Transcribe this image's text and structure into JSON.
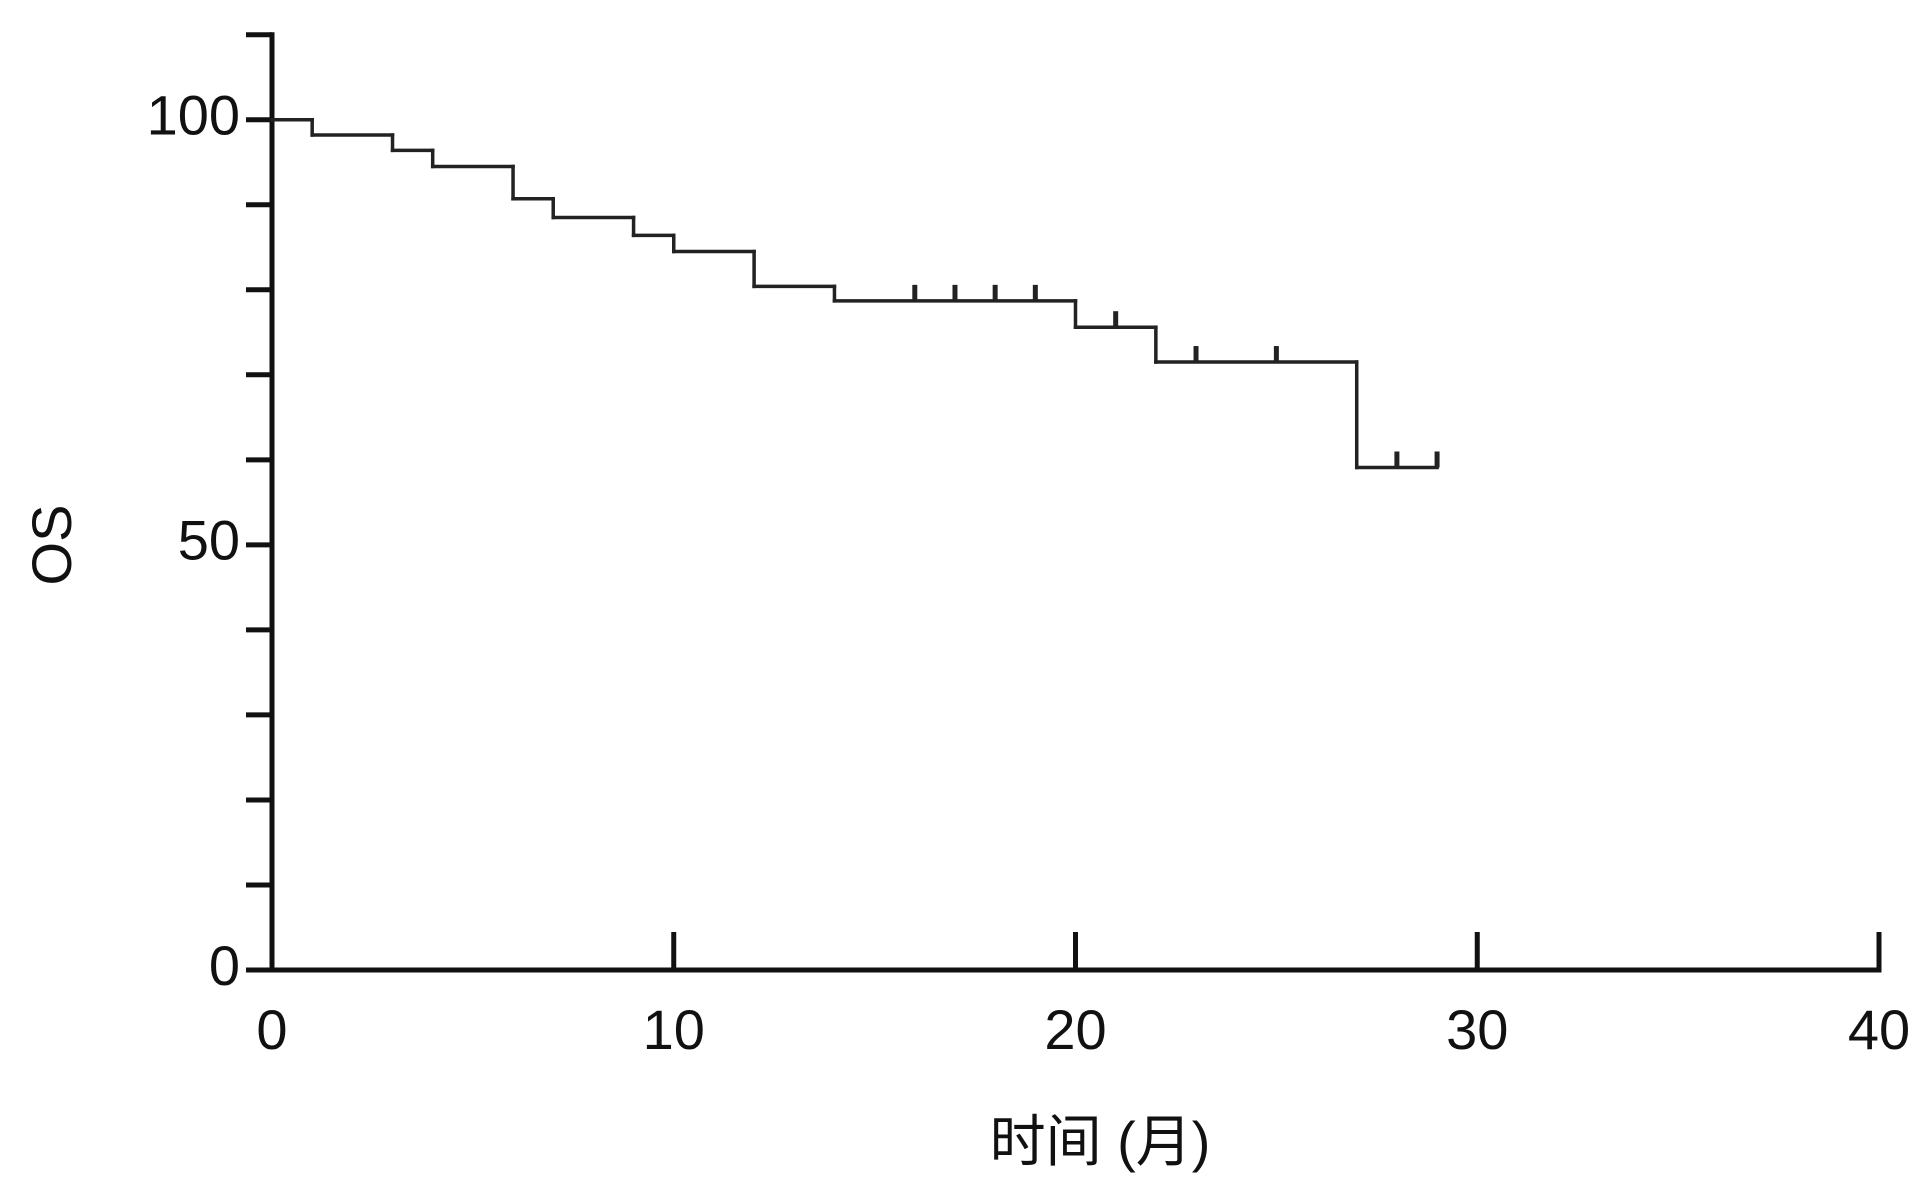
{
  "chart_data": {
    "type": "step",
    "x_label": "时间 (月)",
    "y_label": "OS",
    "x": [
      0,
      1,
      3,
      4,
      6,
      7,
      9,
      10,
      12,
      14,
      20,
      22,
      27
    ],
    "values": [
      100,
      98.2,
      96.4,
      94.5,
      90.7,
      88.5,
      86.4,
      84.5,
      80.4,
      78.7,
      75.6,
      71.5,
      59.1
    ],
    "censored_x": [
      16,
      17,
      18,
      19,
      21,
      23,
      25,
      28,
      29
    ],
    "color": "#222222",
    "xlim": [
      0,
      40
    ],
    "xticks": [
      0,
      10,
      20,
      30,
      40
    ],
    "ylim": [
      0,
      110
    ],
    "yticks": [
      0,
      50,
      100
    ],
    "yminorticks": [
      10,
      20,
      30,
      40,
      60,
      70,
      80,
      90,
      110
    ]
  }
}
